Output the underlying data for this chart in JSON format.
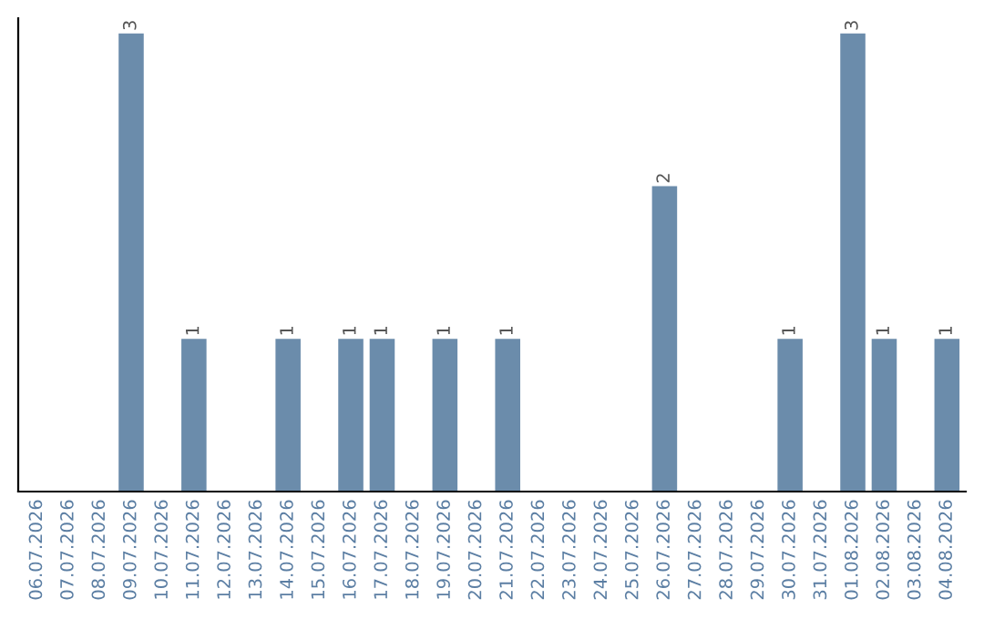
{
  "chart_data": {
    "type": "bar",
    "categories": [
      "06.07.2026",
      "07.07.2026",
      "08.07.2026",
      "09.07.2026",
      "10.07.2026",
      "11.07.2026",
      "12.07.2026",
      "13.07.2026",
      "14.07.2026",
      "15.07.2026",
      "16.07.2026",
      "17.07.2026",
      "18.07.2026",
      "19.07.2026",
      "20.07.2026",
      "21.07.2026",
      "22.07.2026",
      "23.07.2026",
      "24.07.2026",
      "25.07.2026",
      "26.07.2026",
      "27.07.2026",
      "28.07.2026",
      "29.07.2026",
      "30.07.2026",
      "31.07.2026",
      "01.08.2026",
      "02.08.2026",
      "03.08.2026",
      "04.08.2026"
    ],
    "values": [
      0,
      0,
      0,
      3,
      0,
      1,
      0,
      0,
      1,
      0,
      1,
      1,
      0,
      1,
      0,
      1,
      0,
      0,
      0,
      0,
      2,
      0,
      0,
      0,
      1,
      0,
      3,
      1,
      0,
      1
    ],
    "value_labels": [
      null,
      null,
      null,
      "3",
      null,
      "1",
      null,
      null,
      "1",
      null,
      "1",
      "1",
      null,
      "1",
      null,
      "1",
      null,
      null,
      null,
      null,
      "2",
      null,
      null,
      null,
      "1",
      null,
      "3",
      "1",
      null,
      "1"
    ],
    "color": "#6b8cab",
    "ylim": [
      0,
      3.1
    ],
    "tick_labels": "x",
    "grid": false,
    "legend": false
  }
}
